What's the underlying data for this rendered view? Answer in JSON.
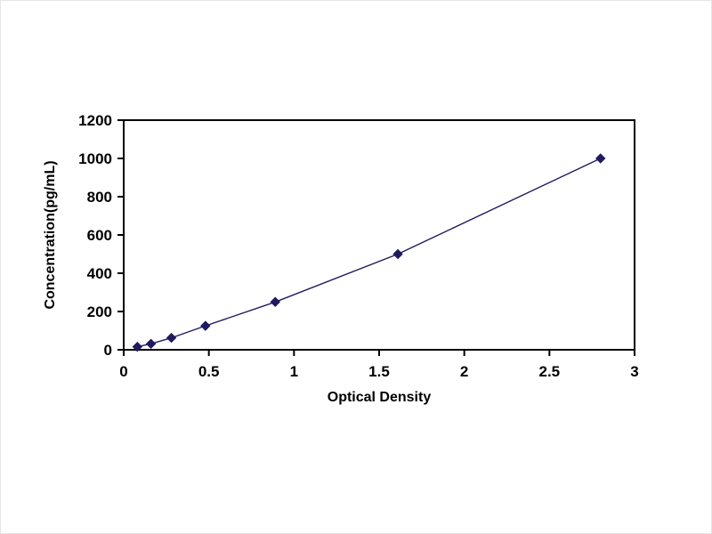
{
  "chart_data": {
    "type": "line",
    "title": "",
    "xlabel": "Optical Density",
    "ylabel": "Concentration(pg/mL)",
    "x": [
      0.08,
      0.16,
      0.28,
      0.48,
      0.89,
      1.61,
      2.8
    ],
    "y": [
      15.6,
      31.2,
      62.5,
      125,
      250,
      500,
      1000
    ],
    "xlim": [
      0,
      3
    ],
    "ylim": [
      0,
      1200
    ],
    "xticks": [
      0,
      0.5,
      1,
      1.5,
      2,
      2.5,
      3
    ],
    "xtick_labels": [
      "0",
      "0.5",
      "1",
      "1.5",
      "2",
      "2.5",
      "3"
    ],
    "yticks": [
      0,
      200,
      400,
      600,
      800,
      1000,
      1200
    ],
    "ytick_labels": [
      "0",
      "200",
      "400",
      "600",
      "800",
      "1000",
      "1200"
    ],
    "line_color": "#1f1a5e",
    "marker": "diamond",
    "marker_color": "#1f1a5e",
    "frame_color": "#000000",
    "grid": false,
    "legend": false
  }
}
